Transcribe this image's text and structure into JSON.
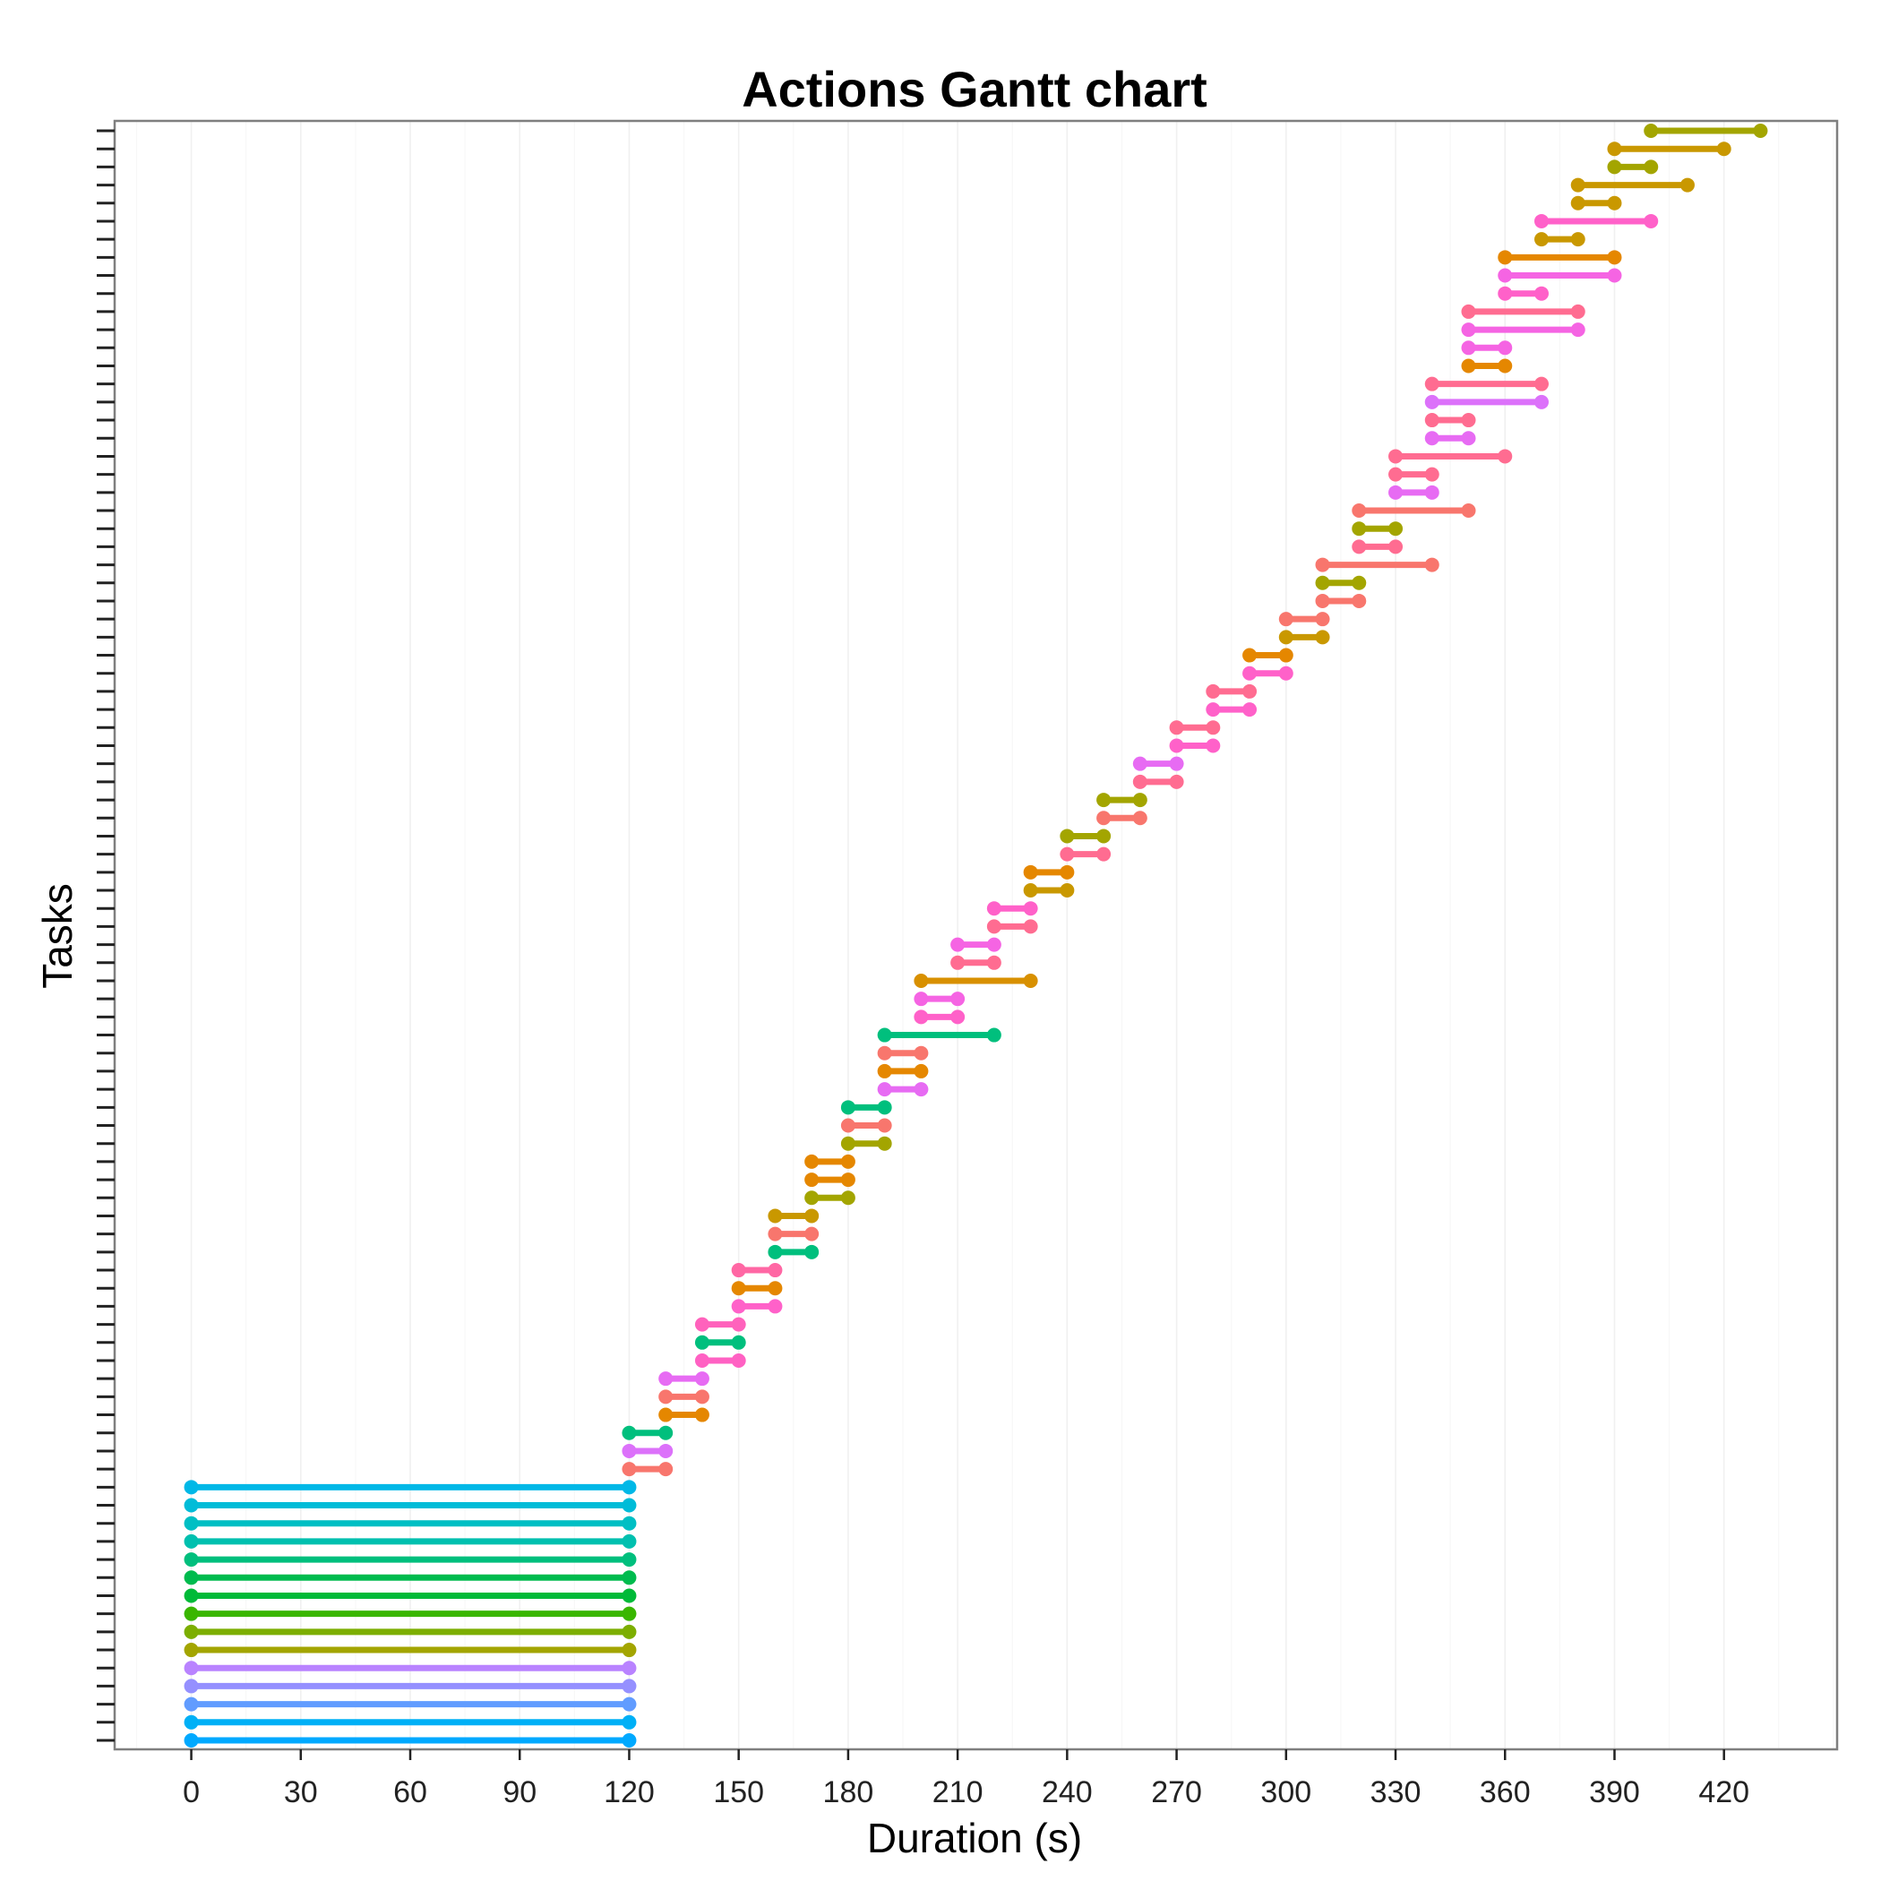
{
  "chart_data": {
    "type": "gantt",
    "title": "Actions Gantt chart",
    "xlabel": "Duration (s)",
    "ylabel": "Tasks",
    "xlim": [
      -21,
      451
    ],
    "x_ticks": [
      0,
      30,
      60,
      90,
      120,
      150,
      180,
      210,
      240,
      270,
      300,
      330,
      360,
      390,
      420
    ],
    "grid": "vertical major and minor lines, faint grey",
    "y_tick_labels": "none (tick marks only)",
    "legend": "none",
    "task_count": 90,
    "tasks": [
      {
        "start": 0,
        "end": 120,
        "color": "#00A9FF"
      },
      {
        "start": 0,
        "end": 120,
        "color": "#00B0F6"
      },
      {
        "start": 0,
        "end": 120,
        "color": "#619CFF"
      },
      {
        "start": 0,
        "end": 120,
        "color": "#9590FF"
      },
      {
        "start": 0,
        "end": 120,
        "color": "#B983FF"
      },
      {
        "start": 0,
        "end": 120,
        "color": "#A3A500"
      },
      {
        "start": 0,
        "end": 120,
        "color": "#7CAE00"
      },
      {
        "start": 0,
        "end": 120,
        "color": "#39B600"
      },
      {
        "start": 0,
        "end": 120,
        "color": "#00BA38"
      },
      {
        "start": 0,
        "end": 120,
        "color": "#00BB4E"
      },
      {
        "start": 0,
        "end": 120,
        "color": "#00BF7D"
      },
      {
        "start": 0,
        "end": 120,
        "color": "#00C0AF"
      },
      {
        "start": 0,
        "end": 120,
        "color": "#00BFC4"
      },
      {
        "start": 0,
        "end": 120,
        "color": "#00BCD8"
      },
      {
        "start": 0,
        "end": 120,
        "color": "#00B8E7"
      },
      {
        "start": 120,
        "end": 130,
        "color": "#F8766D"
      },
      {
        "start": 120,
        "end": 130,
        "color": "#DC71FA"
      },
      {
        "start": 120,
        "end": 130,
        "color": "#00BF7D"
      },
      {
        "start": 130,
        "end": 140,
        "color": "#E58700"
      },
      {
        "start": 130,
        "end": 140,
        "color": "#F8766D"
      },
      {
        "start": 130,
        "end": 140,
        "color": "#E76BF3"
      },
      {
        "start": 140,
        "end": 150,
        "color": "#FF61C3"
      },
      {
        "start": 140,
        "end": 150,
        "color": "#00BF7D"
      },
      {
        "start": 140,
        "end": 150,
        "color": "#FF62BC"
      },
      {
        "start": 150,
        "end": 160,
        "color": "#FF61C9"
      },
      {
        "start": 150,
        "end": 160,
        "color": "#E58700"
      },
      {
        "start": 150,
        "end": 160,
        "color": "#FF67A4"
      },
      {
        "start": 160,
        "end": 170,
        "color": "#00BF7D"
      },
      {
        "start": 160,
        "end": 170,
        "color": "#F8766D"
      },
      {
        "start": 160,
        "end": 170,
        "color": "#C99800"
      },
      {
        "start": 170,
        "end": 180,
        "color": "#A3A500"
      },
      {
        "start": 170,
        "end": 180,
        "color": "#E58700"
      },
      {
        "start": 170,
        "end": 180,
        "color": "#E58700"
      },
      {
        "start": 180,
        "end": 190,
        "color": "#A3A500"
      },
      {
        "start": 180,
        "end": 190,
        "color": "#F8766D"
      },
      {
        "start": 180,
        "end": 190,
        "color": "#00BF7D"
      },
      {
        "start": 190,
        "end": 200,
        "color": "#E76BF3"
      },
      {
        "start": 190,
        "end": 200,
        "color": "#E58700"
      },
      {
        "start": 190,
        "end": 200,
        "color": "#F8766D"
      },
      {
        "start": 190,
        "end": 220,
        "color": "#00BF7D"
      },
      {
        "start": 200,
        "end": 210,
        "color": "#FF61C9"
      },
      {
        "start": 200,
        "end": 210,
        "color": "#F564E3"
      },
      {
        "start": 200,
        "end": 230,
        "color": "#D89000"
      },
      {
        "start": 210,
        "end": 220,
        "color": "#FF6C91"
      },
      {
        "start": 210,
        "end": 220,
        "color": "#F564E3"
      },
      {
        "start": 220,
        "end": 230,
        "color": "#FF6C91"
      },
      {
        "start": 220,
        "end": 230,
        "color": "#FF61C9"
      },
      {
        "start": 230,
        "end": 240,
        "color": "#C99800"
      },
      {
        "start": 230,
        "end": 240,
        "color": "#E58700"
      },
      {
        "start": 240,
        "end": 250,
        "color": "#FF6C91"
      },
      {
        "start": 240,
        "end": 250,
        "color": "#A3A500"
      },
      {
        "start": 250,
        "end": 260,
        "color": "#F8766D"
      },
      {
        "start": 250,
        "end": 260,
        "color": "#A3A500"
      },
      {
        "start": 260,
        "end": 270,
        "color": "#FF6C91"
      },
      {
        "start": 260,
        "end": 270,
        "color": "#E76BF3"
      },
      {
        "start": 270,
        "end": 280,
        "color": "#FF61C9"
      },
      {
        "start": 270,
        "end": 280,
        "color": "#FF6C91"
      },
      {
        "start": 280,
        "end": 290,
        "color": "#FF61C9"
      },
      {
        "start": 280,
        "end": 290,
        "color": "#FF6C91"
      },
      {
        "start": 290,
        "end": 300,
        "color": "#FF61C9"
      },
      {
        "start": 290,
        "end": 300,
        "color": "#E58700"
      },
      {
        "start": 300,
        "end": 310,
        "color": "#C99800"
      },
      {
        "start": 300,
        "end": 310,
        "color": "#F8766D"
      },
      {
        "start": 310,
        "end": 320,
        "color": "#F8766D"
      },
      {
        "start": 310,
        "end": 320,
        "color": "#A3A500"
      },
      {
        "start": 310,
        "end": 340,
        "color": "#F8766D"
      },
      {
        "start": 320,
        "end": 330,
        "color": "#FF6C91"
      },
      {
        "start": 320,
        "end": 330,
        "color": "#A3A500"
      },
      {
        "start": 320,
        "end": 350,
        "color": "#F8766D"
      },
      {
        "start": 330,
        "end": 340,
        "color": "#E76BF3"
      },
      {
        "start": 330,
        "end": 340,
        "color": "#FF6C91"
      },
      {
        "start": 330,
        "end": 360,
        "color": "#FF6C91"
      },
      {
        "start": 340,
        "end": 350,
        "color": "#E76BF3"
      },
      {
        "start": 340,
        "end": 350,
        "color": "#FF6C91"
      },
      {
        "start": 340,
        "end": 370,
        "color": "#DC71FA"
      },
      {
        "start": 340,
        "end": 370,
        "color": "#FF6C91"
      },
      {
        "start": 350,
        "end": 360,
        "color": "#E58700"
      },
      {
        "start": 350,
        "end": 360,
        "color": "#F564E3"
      },
      {
        "start": 350,
        "end": 380,
        "color": "#F564E3"
      },
      {
        "start": 350,
        "end": 380,
        "color": "#FF6C91"
      },
      {
        "start": 360,
        "end": 370,
        "color": "#FF61C9"
      },
      {
        "start": 360,
        "end": 390,
        "color": "#F564E3"
      },
      {
        "start": 360,
        "end": 390,
        "color": "#E58700"
      },
      {
        "start": 370,
        "end": 380,
        "color": "#C99800"
      },
      {
        "start": 370,
        "end": 400,
        "color": "#FF61C9"
      },
      {
        "start": 380,
        "end": 390,
        "color": "#C99800"
      },
      {
        "start": 380,
        "end": 410,
        "color": "#C99800"
      },
      {
        "start": 390,
        "end": 400,
        "color": "#A3A500"
      },
      {
        "start": 390,
        "end": 420,
        "color": "#C99800"
      },
      {
        "start": 400,
        "end": 430,
        "color": "#A3A500"
      }
    ]
  }
}
